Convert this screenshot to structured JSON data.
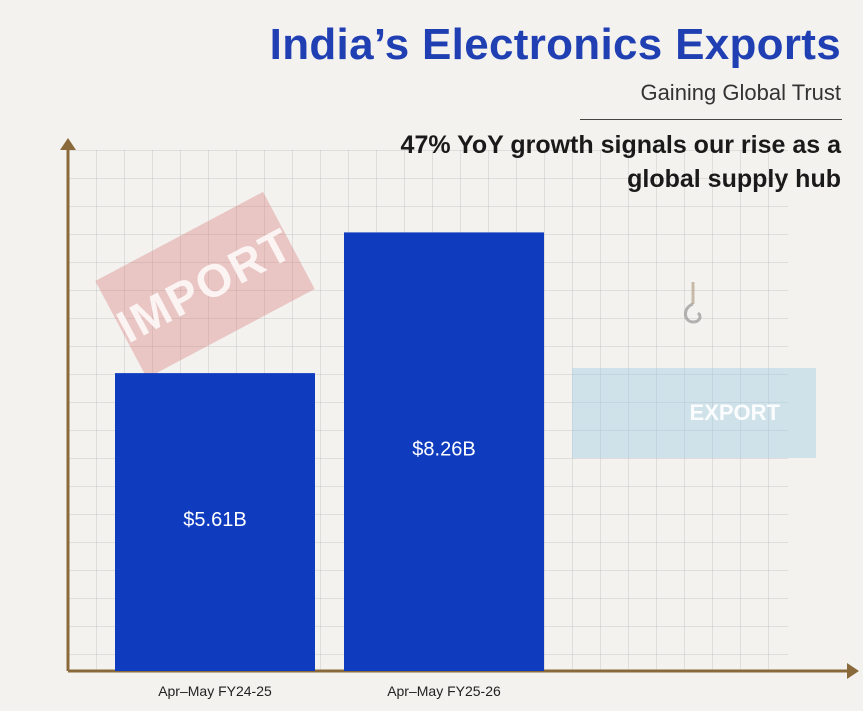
{
  "header": {
    "title": "India’s Electronics Exports",
    "subtitle": "Gaining Global Trust",
    "headline": "47% YoY growth signals our rise as a global supply hub"
  },
  "decor": {
    "import_stamp": "IMPORT",
    "export_container": "EXPORT"
  },
  "colors": {
    "bar": "#0f3cbe",
    "title": "#1f3fb3",
    "axis": "#8a6a3a"
  },
  "chart_data": {
    "type": "bar",
    "categories": [
      "Apr–May FY24-25",
      "Apr–May FY25-26"
    ],
    "values": [
      5.61,
      8.26
    ],
    "data_labels": [
      "$5.61B",
      "$8.26B"
    ],
    "ylim": [
      0,
      10
    ],
    "grid": true
  }
}
